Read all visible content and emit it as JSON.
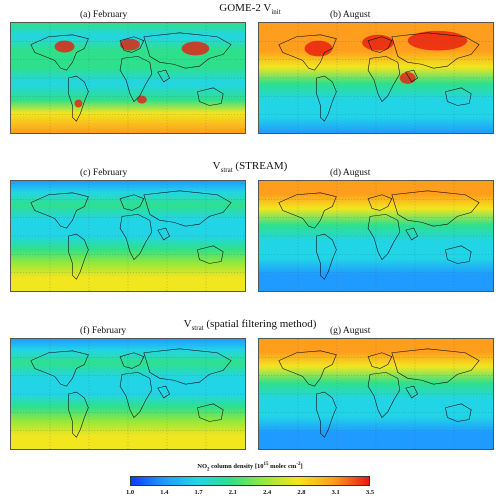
{
  "rows": [
    {
      "title": {
        "main": "GOME-2 V",
        "sub": "init"
      },
      "left": {
        "label": "(a) February",
        "scheme": "feb_init"
      },
      "right": {
        "label": "(b) August",
        "scheme": "aug_init"
      }
    },
    {
      "title": {
        "main": "V",
        "sub": "strat",
        "suffix": " (STREAM)"
      },
      "left": {
        "label": "(c) February",
        "scheme": "feb_strat"
      },
      "right": {
        "label": "(d) August",
        "scheme": "aug_strat"
      }
    },
    {
      "title": {
        "main": "V",
        "sub": "strat",
        "suffix": " (spatial filtering method)"
      },
      "left": {
        "label": "(f) February",
        "scheme": "feb_strat"
      },
      "right": {
        "label": "(g) August",
        "scheme": "aug_strat"
      }
    }
  ],
  "colorbar": {
    "title_prefix": "NO",
    "title_sub": "2",
    "title_mid": " column density [10",
    "title_sup": "15",
    "title_unit": " molec cm",
    "title_sup2": "-2",
    "title_end": "]",
    "ticks": [
      "1.0",
      "1.4",
      "1.7",
      "2.1",
      "2.4",
      "2.8",
      "3.1",
      "3.5"
    ],
    "range": [
      1.0,
      3.5
    ],
    "colors": [
      "#0a3dff",
      "#1f9bff",
      "#22d5e6",
      "#2fe08a",
      "#98e83a",
      "#f2e61f",
      "#ff9d1c",
      "#e81b0f"
    ]
  }
}
